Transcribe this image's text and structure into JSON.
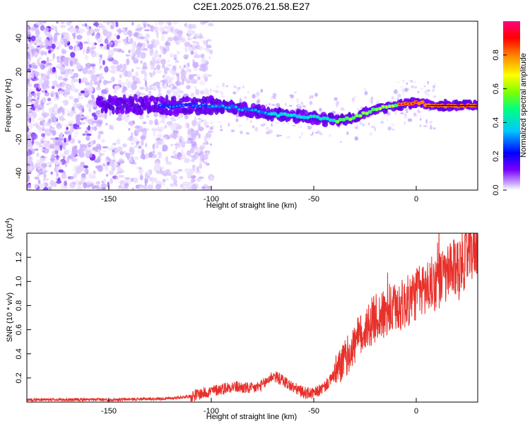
{
  "title": "C2E1.2025.076.21.58.E27",
  "chart_data": [
    {
      "type": "heatmap",
      "xlabel": "Height of straight line (km)",
      "ylabel": "Frequency (Hz)",
      "xlim": [
        -190,
        30
      ],
      "ylim": [
        -50,
        50
      ],
      "xticks": [
        -150,
        -100,
        -50,
        0
      ],
      "yticks": [
        -40,
        -20,
        0,
        20,
        40
      ],
      "colorbar": {
        "label": "Normalized spectral amplitude",
        "range": [
          0,
          1
        ],
        "ticks": [
          "0.0",
          "0.2",
          "0.4",
          "0.6",
          "0.8"
        ],
        "colors": [
          "#ffffff",
          "#c8a8ff",
          "#7a00ff",
          "#0000ff",
          "#00c8ff",
          "#00ff80",
          "#80ff00",
          "#ffff00",
          "#ff8000",
          "#ff0000",
          "#ff0080"
        ]
      },
      "ridge_frequency": {
        "height_km": [
          -150,
          -120,
          -100,
          -90,
          -80,
          -70,
          -60,
          -50,
          -40,
          -30,
          -20,
          -10,
          0,
          10,
          20,
          30
        ],
        "frequency_hz": [
          1,
          0,
          0,
          -1,
          -3,
          -5,
          -6,
          -7,
          -9,
          -7,
          -2,
          0,
          2,
          0,
          0,
          0
        ]
      }
    },
    {
      "type": "line",
      "xlabel": "Height of straight line (km)",
      "ylabel": "SNR (10 * v/v)",
      "y_multiplier": "(x10",
      "y_multiplier_exp": "4",
      "y_multiplier_close": ")",
      "xlim": [
        -190,
        30
      ],
      "ylim": [
        0,
        1.4
      ],
      "xticks": [
        -150,
        -100,
        -50,
        0
      ],
      "yticks": [
        "0.2",
        "0.4",
        "0.6",
        "0.8",
        "1.0",
        "1.2"
      ],
      "series": [
        {
          "color": "#e8302a",
          "x": [
            -190,
            -150,
            -120,
            -110,
            -105,
            -100,
            -95,
            -90,
            -85,
            -80,
            -75,
            -70,
            -65,
            -60,
            -55,
            -50,
            -45,
            -40,
            -35,
            -30,
            -25,
            -20,
            -15,
            -10,
            -5,
            0,
            5,
            10,
            15,
            20,
            25,
            30
          ],
          "y": [
            0.02,
            0.02,
            0.03,
            0.05,
            0.07,
            0.09,
            0.11,
            0.13,
            0.12,
            0.11,
            0.14,
            0.22,
            0.18,
            0.12,
            0.08,
            0.07,
            0.12,
            0.22,
            0.35,
            0.48,
            0.6,
            0.7,
            0.72,
            0.78,
            0.82,
            0.9,
            0.95,
            1.0,
            1.05,
            1.12,
            1.22,
            1.32
          ]
        }
      ]
    }
  ]
}
